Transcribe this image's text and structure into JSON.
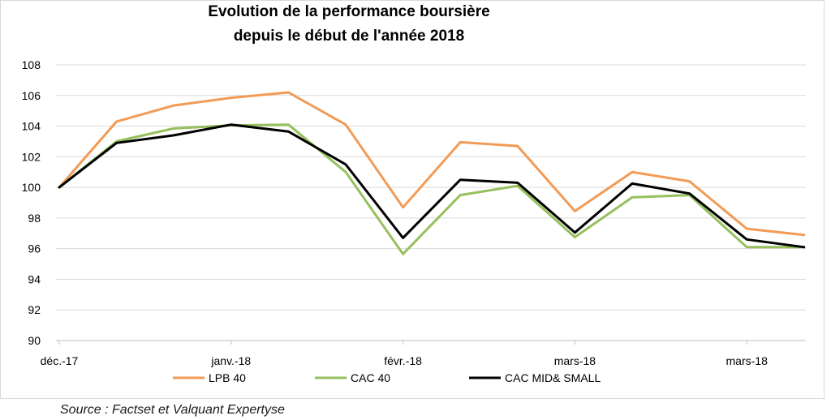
{
  "chart_data": {
    "type": "line",
    "title_lines": [
      "Evolution de la performance boursière",
      "depuis le début de l'année 2018"
    ],
    "xlabel": "",
    "ylabel": "",
    "ylim": [
      90,
      108
    ],
    "y_ticks": [
      90,
      92,
      94,
      96,
      98,
      100,
      102,
      104,
      106,
      108
    ],
    "x_tick_labels": [
      {
        "index": 0,
        "label": "déc.-17"
      },
      {
        "index": 3,
        "label": "janv.-18"
      },
      {
        "index": 6,
        "label": "févr.-18"
      },
      {
        "index": 9,
        "label": "mars-18"
      },
      {
        "index": 12,
        "label": "mars-18"
      }
    ],
    "grid": true,
    "legend_position": "bottom",
    "series": [
      {
        "name": "LPB 40",
        "color": "#f29b56",
        "values": [
          100.0,
          104.3,
          105.35,
          105.85,
          106.2,
          104.1,
          98.7,
          102.95,
          102.7,
          98.45,
          101.0,
          100.4,
          97.3,
          96.9
        ]
      },
      {
        "name": "CAC 40",
        "color": "#96c05e",
        "values": [
          100.0,
          103.0,
          103.85,
          104.05,
          104.1,
          101.0,
          95.65,
          99.5,
          100.1,
          96.75,
          99.35,
          99.5,
          96.1,
          96.1
        ]
      },
      {
        "name": "CAC MID& SMALL",
        "color": "#000000",
        "values": [
          100.0,
          102.9,
          103.4,
          104.1,
          103.65,
          101.5,
          96.7,
          100.5,
          100.3,
          97.05,
          100.25,
          99.6,
          96.6,
          96.1
        ]
      }
    ]
  },
  "source_text": "Source : Factset et Valquant Expertyse"
}
